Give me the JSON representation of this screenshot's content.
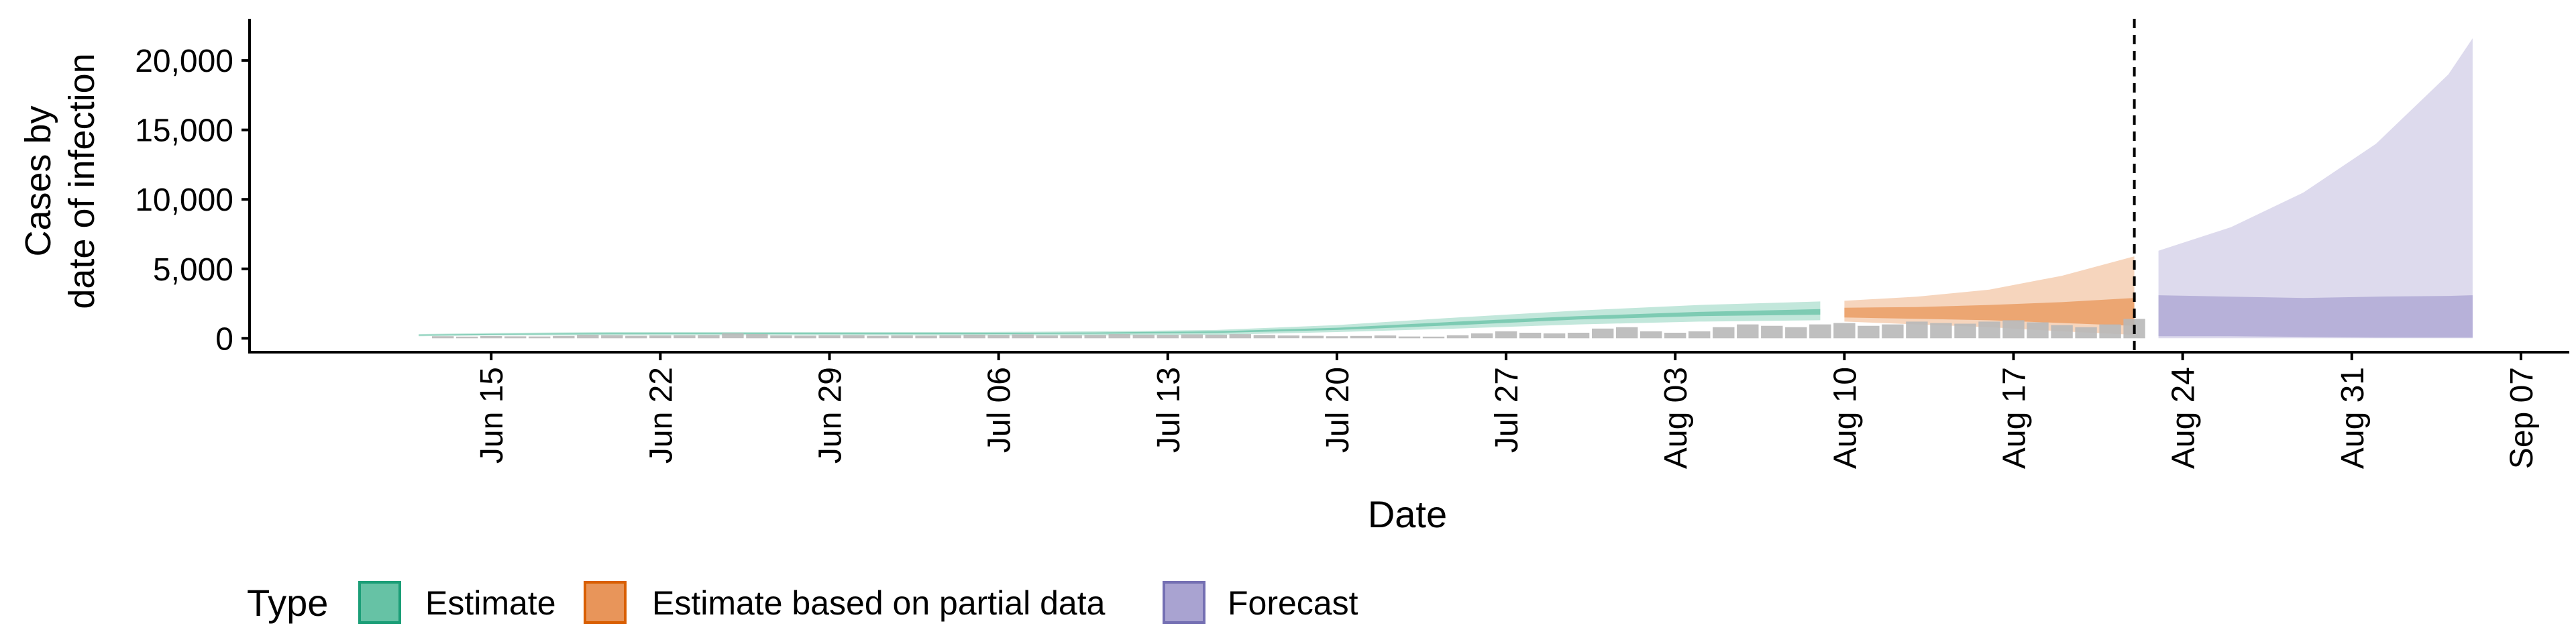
{
  "chart_data": {
    "type": "area",
    "title": "",
    "xlabel": "Date",
    "ylabel_lines": [
      "Cases by",
      "date of infection"
    ],
    "ylim": [
      -1000,
      23000
    ],
    "xlim": [
      "2020-06-05",
      "2020-09-09"
    ],
    "yticks": [
      0,
      5000,
      10000,
      15000,
      20000
    ],
    "ytick_labels": [
      "0",
      "5,000",
      "10,000",
      "15,000",
      "20,000"
    ],
    "xticks": [
      "2020-06-15",
      "2020-06-22",
      "2020-06-29",
      "2020-07-06",
      "2020-07-13",
      "2020-07-20",
      "2020-07-27",
      "2020-08-03",
      "2020-08-10",
      "2020-08-17",
      "2020-08-24",
      "2020-08-31",
      "2020-09-07"
    ],
    "xtick_labels": [
      "Jun 15",
      "Jun 22",
      "Jun 29",
      "Jul 06",
      "Jul 13",
      "Jul 20",
      "Jul 27",
      "Aug 03",
      "Aug 10",
      "Aug 17",
      "Aug 24",
      "Aug 31",
      "Sep 07"
    ],
    "cutoff_date": "2020-08-22",
    "grid": false,
    "legend": {
      "title": "Type",
      "placement": "bottom",
      "items": [
        {
          "label": "Estimate",
          "fill": "#66c2a5",
          "stroke": "#1b9e77"
        },
        {
          "label": "Estimate based on partial data",
          "fill": "#e8955a",
          "stroke": "#d95f02"
        },
        {
          "label": "Forecast",
          "fill": "#a9a3d1",
          "stroke": "#7570b3"
        }
      ]
    },
    "observed_bars": {
      "color": "#b8b8b8",
      "dates": [
        "2020-06-13",
        "2020-06-14",
        "2020-06-15",
        "2020-06-16",
        "2020-06-17",
        "2020-06-18",
        "2020-06-19",
        "2020-06-20",
        "2020-06-21",
        "2020-06-22",
        "2020-06-23",
        "2020-06-24",
        "2020-06-25",
        "2020-06-26",
        "2020-06-27",
        "2020-06-28",
        "2020-06-29",
        "2020-06-30",
        "2020-07-01",
        "2020-07-02",
        "2020-07-03",
        "2020-07-04",
        "2020-07-05",
        "2020-07-06",
        "2020-07-07",
        "2020-07-08",
        "2020-07-09",
        "2020-07-10",
        "2020-07-11",
        "2020-07-12",
        "2020-07-13",
        "2020-07-14",
        "2020-07-15",
        "2020-07-16",
        "2020-07-17",
        "2020-07-18",
        "2020-07-19",
        "2020-07-20",
        "2020-07-21",
        "2020-07-22",
        "2020-07-23",
        "2020-07-24",
        "2020-07-25",
        "2020-07-26",
        "2020-07-27",
        "2020-07-28",
        "2020-07-29",
        "2020-07-30",
        "2020-07-31",
        "2020-08-01",
        "2020-08-02",
        "2020-08-03",
        "2020-08-04",
        "2020-08-05",
        "2020-08-06",
        "2020-08-07",
        "2020-08-08",
        "2020-08-09",
        "2020-08-10",
        "2020-08-11",
        "2020-08-12",
        "2020-08-13",
        "2020-08-14",
        "2020-08-15",
        "2020-08-16",
        "2020-08-17",
        "2020-08-18",
        "2020-08-19",
        "2020-08-20",
        "2020-08-21",
        "2020-08-22"
      ],
      "values": [
        150,
        120,
        160,
        140,
        130,
        170,
        250,
        220,
        180,
        200,
        210,
        230,
        350,
        300,
        200,
        190,
        210,
        220,
        180,
        200,
        190,
        210,
        260,
        240,
        280,
        200,
        220,
        240,
        300,
        260,
        250,
        280,
        260,
        300,
        240,
        200,
        180,
        150,
        170,
        200,
        130,
        120,
        220,
        350,
        500,
        400,
        350,
        400,
        700,
        800,
        500,
        400,
        500,
        800,
        1000,
        900,
        800,
        1000,
        1100,
        900,
        1000,
        1200,
        1100,
        1050,
        1200,
        1300,
        1150,
        950,
        800,
        1000,
        1400
      ]
    },
    "series": [
      {
        "name": "Estimate",
        "dates": [
          "2020-06-12",
          "2020-06-15",
          "2020-06-20",
          "2020-06-25",
          "2020-06-30",
          "2020-07-05",
          "2020-07-10",
          "2020-07-15",
          "2020-07-20",
          "2020-07-25",
          "2020-07-30",
          "2020-08-04",
          "2020-08-09"
        ],
        "lower90": [
          150,
          200,
          220,
          220,
          220,
          200,
          200,
          250,
          450,
          700,
          1000,
          1200,
          1300
        ],
        "upper90": [
          300,
          380,
          450,
          450,
          450,
          450,
          500,
          600,
          950,
          1500,
          2000,
          2400,
          2650
        ],
        "lower50": [
          200,
          260,
          300,
          310,
          300,
          300,
          330,
          390,
          600,
          950,
          1350,
          1600,
          1700
        ],
        "upper50": [
          260,
          320,
          370,
          380,
          380,
          390,
          420,
          500,
          760,
          1200,
          1600,
          1900,
          2100
        ]
      },
      {
        "name": "Estimate based on partial data",
        "dates": [
          "2020-08-10",
          "2020-08-13",
          "2020-08-16",
          "2020-08-19",
          "2020-08-22"
        ],
        "lower90": [
          1200,
          1000,
          800,
          500,
          250
        ],
        "upper90": [
          2700,
          3000,
          3500,
          4500,
          5900
        ],
        "lower50": [
          1500,
          1400,
          1300,
          1100,
          900
        ],
        "upper50": [
          2200,
          2250,
          2400,
          2600,
          2900
        ]
      },
      {
        "name": "Forecast",
        "dates": [
          "2020-08-23",
          "2020-08-26",
          "2020-08-29",
          "2020-09-01",
          "2020-09-04",
          "2020-09-05"
        ],
        "lower90": [
          0,
          0,
          0,
          0,
          0,
          0
        ],
        "upper90": [
          6300,
          8000,
          10500,
          14000,
          19000,
          21600
        ],
        "lower50": [
          150,
          150,
          100,
          50,
          50,
          50
        ],
        "upper50": [
          3100,
          3000,
          2900,
          3000,
          3050,
          3100
        ]
      }
    ]
  }
}
